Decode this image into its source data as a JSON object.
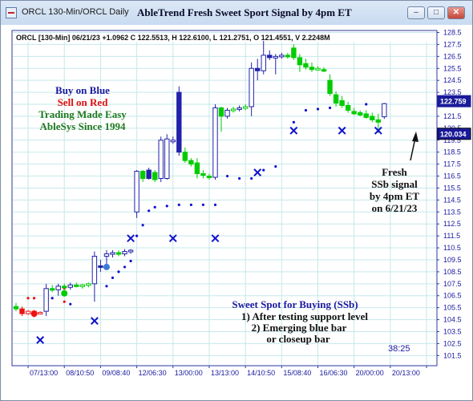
{
  "window": {
    "title": "ORCL 130-Min/ORCL Daily",
    "chart_title": "AbleTrend Fresh Sweet Sport Signal by 4pm ET",
    "buttons": [
      "minimize-icon",
      "restore-icon",
      "close-icon"
    ]
  },
  "colors": {
    "up_bar": "#2222aa",
    "down_bar": "#00cc00",
    "support_dot": "#1111cc",
    "signal_x": "#1111cc",
    "red_marker": "#ee1111",
    "grid": "#c6e8ea",
    "text_blue": "#1a1aa0",
    "text_red": "#e01010",
    "text_green": "#1e7a1e"
  },
  "chart_data": {
    "type": "candlestick",
    "header": "ORCL [130-Min] 06/21/23 +1.0962 C 122.5513, H 122.6100, L 121.2751, O 121.4551, V 2.2248M",
    "ylim": [
      101.5,
      129.5
    ],
    "y_ticks": [
      128.5,
      127.5,
      126.5,
      125.5,
      124.5,
      123.5,
      122.5,
      121.5,
      120.5,
      119.5,
      118.5,
      117.5,
      116.5,
      115.5,
      114.5,
      113.5,
      112.5,
      111.5,
      110.5,
      109.5,
      108.5,
      107.5,
      106.5,
      105.5,
      104.5,
      103.5,
      102.5,
      101.5
    ],
    "y_tick_labels": [
      "128.5",
      "127.5",
      "126.5",
      "125.5",
      "124.5",
      "123.5",
      "122.5",
      "121.5",
      "120.5",
      "119.5",
      "118.5",
      "117.5",
      "116.5",
      "115.5",
      "114.5",
      "113.5",
      "112.5",
      "111.5",
      "110.5",
      "109.5",
      "108.5",
      "107.5",
      "106.5",
      "105.5",
      "104.5",
      "103.5",
      "102.5",
      "101.5"
    ],
    "x_ticks": [
      2,
      8,
      14,
      20,
      26,
      32,
      38,
      44,
      50,
      56,
      62,
      68
    ],
    "x_tick_labels": [
      "07/13:00",
      "08/10:50",
      "09/08:40",
      "12/06:30",
      "13/00:00",
      "13/13:00",
      "14/10:50",
      "15/08:40",
      "16/06:30",
      "20/00:00",
      "20/13:00",
      ""
    ],
    "price_labels": [
      {
        "value": 122.759,
        "text": "122.759",
        "style": "box"
      },
      {
        "value": 120.034,
        "text": "120.034",
        "style": "highlight"
      }
    ],
    "bars": [
      {
        "o": 105.6,
        "h": 105.9,
        "l": 105.2,
        "c": 105.4,
        "color": "green"
      },
      {
        "o": 105.4,
        "h": 105.6,
        "l": 104.8,
        "c": 105.0,
        "color": "red"
      },
      {
        "o": 105.0,
        "h": 105.3,
        "l": 104.9,
        "c": 105.2,
        "color": "red"
      },
      {
        "o": 105.2,
        "h": 105.3,
        "l": 104.7,
        "c": 105.1,
        "color": "red"
      },
      {
        "o": 105.1,
        "h": 105.2,
        "l": 105.0,
        "c": 105.1,
        "color": "red"
      },
      {
        "o": 105.2,
        "h": 107.5,
        "l": 104.8,
        "c": 107.1,
        "color": "blue"
      },
      {
        "o": 107.1,
        "h": 107.4,
        "l": 106.8,
        "c": 107.0,
        "color": "green"
      },
      {
        "o": 107.0,
        "h": 107.5,
        "l": 106.5,
        "c": 107.3,
        "color": "blue"
      },
      {
        "o": 107.3,
        "h": 107.5,
        "l": 107.0,
        "c": 107.2,
        "color": "green"
      },
      {
        "o": 107.2,
        "h": 107.6,
        "l": 107.0,
        "c": 107.4,
        "color": "blue"
      },
      {
        "o": 107.4,
        "h": 107.6,
        "l": 107.2,
        "c": 107.3,
        "color": "green"
      },
      {
        "o": 107.3,
        "h": 107.5,
        "l": 107.1,
        "c": 107.4,
        "color": "green"
      },
      {
        "o": 107.4,
        "h": 107.6,
        "l": 107.2,
        "c": 107.5,
        "color": "green"
      },
      {
        "o": 107.5,
        "h": 110.2,
        "l": 106.0,
        "c": 109.8,
        "color": "blue"
      },
      {
        "o": 109.0,
        "h": 109.5,
        "l": 108.5,
        "c": 108.9,
        "color": "blue"
      },
      {
        "o": 109.8,
        "h": 110.3,
        "l": 109.0,
        "c": 110.0,
        "color": "blue"
      },
      {
        "o": 110.0,
        "h": 110.3,
        "l": 109.7,
        "c": 110.1,
        "color": "blue"
      },
      {
        "o": 110.1,
        "h": 110.3,
        "l": 109.8,
        "c": 110.0,
        "color": "green"
      },
      {
        "o": 110.0,
        "h": 110.4,
        "l": 109.8,
        "c": 110.2,
        "color": "blue"
      },
      {
        "o": 110.2,
        "h": 110.4,
        "l": 110.0,
        "c": 110.3,
        "color": "blue"
      },
      {
        "o": 113.5,
        "h": 117.0,
        "l": 113.0,
        "c": 116.9,
        "color": "blue"
      },
      {
        "o": 116.9,
        "h": 117.0,
        "l": 116.0,
        "c": 116.3,
        "color": "green"
      },
      {
        "o": 117.0,
        "h": 117.2,
        "l": 116.2,
        "c": 116.3,
        "color": "blue"
      },
      {
        "o": 116.8,
        "h": 117.0,
        "l": 116.0,
        "c": 116.2,
        "color": "green"
      },
      {
        "o": 116.3,
        "h": 119.8,
        "l": 116.0,
        "c": 119.5,
        "color": "blue"
      },
      {
        "o": 116.3,
        "h": 120.0,
        "l": 116.2,
        "c": 119.6,
        "color": "blue"
      },
      {
        "o": 119.5,
        "h": 119.8,
        "l": 119.2,
        "c": 119.5,
        "color": "blue"
      },
      {
        "o": 123.5,
        "h": 124.0,
        "l": 118.2,
        "c": 118.5,
        "color": "blue"
      },
      {
        "o": 118.5,
        "h": 118.9,
        "l": 117.6,
        "c": 117.8,
        "color": "green"
      },
      {
        "o": 117.8,
        "h": 118.0,
        "l": 117.3,
        "c": 117.5,
        "color": "green"
      },
      {
        "o": 117.6,
        "h": 118.0,
        "l": 116.3,
        "c": 116.7,
        "color": "green"
      },
      {
        "o": 116.7,
        "h": 117.0,
        "l": 116.3,
        "c": 116.6,
        "color": "green"
      },
      {
        "o": 116.5,
        "h": 116.7,
        "l": 116.2,
        "c": 116.4,
        "color": "green"
      },
      {
        "o": 116.4,
        "h": 122.5,
        "l": 116.2,
        "c": 122.2,
        "color": "blue"
      },
      {
        "o": 122.2,
        "h": 122.3,
        "l": 120.2,
        "c": 121.5,
        "color": "green"
      },
      {
        "o": 121.5,
        "h": 122.2,
        "l": 121.3,
        "c": 122.0,
        "color": "blue"
      },
      {
        "o": 122.0,
        "h": 122.3,
        "l": 121.8,
        "c": 122.1,
        "color": "green"
      },
      {
        "o": 122.1,
        "h": 122.4,
        "l": 121.9,
        "c": 122.2,
        "color": "blue"
      },
      {
        "o": 122.2,
        "h": 122.5,
        "l": 122.0,
        "c": 122.3,
        "color": "green"
      },
      {
        "o": 122.3,
        "h": 126.0,
        "l": 121.5,
        "c": 125.5,
        "color": "blue"
      },
      {
        "o": 125.5,
        "h": 126.3,
        "l": 124.5,
        "c": 125.3,
        "color": "blue"
      },
      {
        "o": 125.3,
        "h": 127.8,
        "l": 125.0,
        "c": 126.6,
        "color": "blue"
      },
      {
        "o": 126.6,
        "h": 127.0,
        "l": 126.2,
        "c": 126.4,
        "color": "blue"
      },
      {
        "o": 126.4,
        "h": 126.7,
        "l": 125.0,
        "c": 126.5,
        "color": "blue"
      },
      {
        "o": 126.5,
        "h": 126.8,
        "l": 126.3,
        "c": 126.6,
        "color": "blue"
      },
      {
        "o": 126.6,
        "h": 126.8,
        "l": 126.3,
        "c": 126.5,
        "color": "green"
      },
      {
        "o": 127.2,
        "h": 127.5,
        "l": 126.2,
        "c": 126.4,
        "color": "green"
      },
      {
        "o": 126.4,
        "h": 126.7,
        "l": 125.2,
        "c": 125.8,
        "color": "green"
      },
      {
        "o": 125.9,
        "h": 126.3,
        "l": 125.4,
        "c": 125.6,
        "color": "green"
      },
      {
        "o": 125.6,
        "h": 126.0,
        "l": 125.2,
        "c": 125.4,
        "color": "green"
      },
      {
        "o": 125.5,
        "h": 125.7,
        "l": 125.3,
        "c": 125.5,
        "color": "green"
      },
      {
        "o": 125.4,
        "h": 125.6,
        "l": 125.2,
        "c": 125.3,
        "color": "green"
      },
      {
        "o": 124.5,
        "h": 125.0,
        "l": 123.2,
        "c": 123.4,
        "color": "green"
      },
      {
        "o": 123.3,
        "h": 123.6,
        "l": 122.3,
        "c": 122.6,
        "color": "green"
      },
      {
        "o": 122.8,
        "h": 123.2,
        "l": 122.2,
        "c": 122.4,
        "color": "green"
      },
      {
        "o": 122.4,
        "h": 122.7,
        "l": 121.8,
        "c": 122.0,
        "color": "green"
      },
      {
        "o": 121.9,
        "h": 122.2,
        "l": 121.6,
        "c": 121.7,
        "color": "green"
      },
      {
        "o": 121.8,
        "h": 122.0,
        "l": 121.5,
        "c": 121.6,
        "color": "green"
      },
      {
        "o": 121.7,
        "h": 122.0,
        "l": 121.3,
        "c": 121.4,
        "color": "green"
      },
      {
        "o": 121.5,
        "h": 121.8,
        "l": 121.0,
        "c": 121.2,
        "color": "green"
      },
      {
        "o": 121.2,
        "h": 121.7,
        "l": 120.1,
        "c": 121.0,
        "color": "green"
      },
      {
        "o": 121.4551,
        "h": 122.61,
        "l": 121.2751,
        "c": 122.5513,
        "color": "blue"
      }
    ],
    "blue_dots": [
      [
        6,
        106.3
      ],
      [
        9,
        105.8
      ],
      [
        15,
        107.3
      ],
      [
        16,
        108.0
      ],
      [
        17,
        108.5
      ],
      [
        18,
        108.9
      ],
      [
        19,
        109.4
      ],
      [
        20,
        111.5
      ],
      [
        21,
        112.4
      ],
      [
        22,
        113.6
      ],
      [
        23,
        113.9
      ],
      [
        25,
        114.0
      ],
      [
        27,
        114.1
      ],
      [
        29,
        114.1
      ],
      [
        31,
        114.1
      ],
      [
        33,
        114.1
      ],
      [
        35,
        116.5
      ],
      [
        37,
        116.3
      ],
      [
        39,
        116.3
      ],
      [
        41,
        117.0
      ],
      [
        43,
        117.3
      ],
      [
        46,
        121.0
      ],
      [
        48,
        122.0
      ],
      [
        50,
        122.1
      ],
      [
        52,
        122.2
      ],
      [
        55,
        122.3
      ],
      [
        58,
        122.5
      ]
    ],
    "red_dots": [
      [
        2,
        106.3
      ],
      [
        3,
        106.3
      ],
      [
        8,
        106.0
      ],
      [
        8,
        107.1
      ]
    ],
    "highlight_dots": [
      {
        "x": 15,
        "y": 108.9,
        "color": "blue"
      },
      {
        "x": 3,
        "y": 105.0,
        "color": "red"
      },
      {
        "x": 8,
        "y": 106.7,
        "color": "green"
      }
    ],
    "x_markers": [
      [
        4,
        102.8
      ],
      [
        13,
        104.4
      ],
      [
        19,
        111.3
      ],
      [
        26,
        111.3
      ],
      [
        33,
        111.3
      ],
      [
        40,
        116.8
      ],
      [
        46,
        120.3
      ],
      [
        54,
        120.3
      ],
      [
        60,
        120.3
      ]
    ],
    "annotations": {
      "legend": [
        {
          "text": "Buy on Blue",
          "color": "blue"
        },
        {
          "text": "Sell on Red",
          "color": "red"
        },
        {
          "text": "Trading Made Easy",
          "color": "green"
        },
        {
          "text": "AbleSys Since 1994",
          "color": "green"
        }
      ],
      "signal_note": [
        "Fresh",
        "SSb signal",
        "by 4pm ET",
        "on 6/21/23"
      ],
      "sweet_spot": [
        "Sweet Spot for Buying (SSb)",
        "1) After testing support level",
        "2) Emerging blue bar",
        "or closeup bar"
      ],
      "time": "38:25"
    },
    "grid": true
  }
}
